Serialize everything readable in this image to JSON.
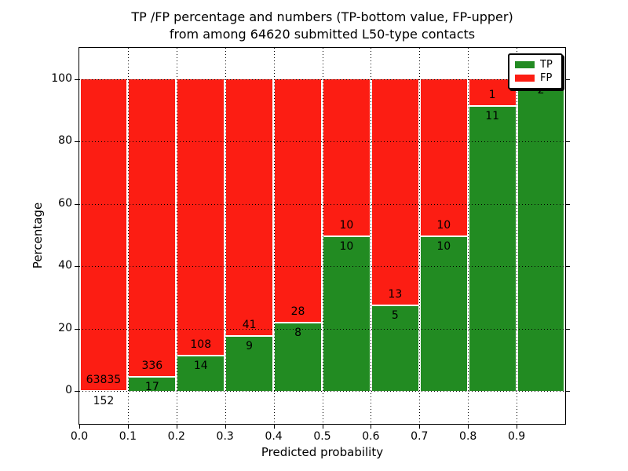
{
  "title": {
    "line1": "TP /FP percentage and numbers (TP-bottom value, FP-upper)",
    "line2": "from among 64620 submitted L50-type contacts"
  },
  "axes": {
    "xlabel": "Predicted probability",
    "ylabel": "Percentage",
    "xtick_labels": [
      "0.0",
      "0.1",
      "0.2",
      "0.3",
      "0.4",
      "0.5",
      "0.6",
      "0.7",
      "0.8",
      "0.9"
    ],
    "xtick_values": [
      0.0,
      0.1,
      0.2,
      0.3,
      0.4,
      0.5,
      0.6,
      0.7,
      0.8,
      0.9
    ],
    "ytick_labels": [
      "0",
      "20",
      "40",
      "60",
      "80",
      "100"
    ],
    "ytick_values": [
      0,
      20,
      40,
      60,
      80,
      100
    ]
  },
  "legend": {
    "items": [
      {
        "label": "TP",
        "color": "#228b22"
      },
      {
        "label": "FP",
        "color": "#fc1d13"
      }
    ]
  },
  "chart_data": {
    "type": "bar",
    "stacked": true,
    "normalized": "percent-of-bin-total",
    "title": "TP /FP percentage and numbers (TP-bottom value, FP-upper) from among 64620 submitted L50-type contacts",
    "xlabel": "Predicted probability",
    "ylabel": "Percentage",
    "bin_edges": [
      0.0,
      0.1,
      0.2,
      0.3,
      0.4,
      0.5,
      0.6,
      0.7,
      0.8,
      0.9,
      1.0
    ],
    "series": [
      {
        "name": "TP",
        "color": "#228b22",
        "counts": [
          152,
          17,
          14,
          9,
          8,
          10,
          5,
          10,
          11,
          2
        ]
      },
      {
        "name": "FP",
        "color": "#fc1d13",
        "counts": [
          63835,
          336,
          108,
          41,
          28,
          10,
          13,
          10,
          1,
          0
        ]
      }
    ],
    "tp_percent_per_bin": [
      0.24,
      4.82,
      11.48,
      18.0,
      22.22,
      50.0,
      27.78,
      50.0,
      91.67,
      100.0
    ],
    "total_contacts": 64620,
    "xlim": [
      0.0,
      1.0
    ],
    "ylim": [
      -10.6,
      110.1
    ],
    "grid": "dotted",
    "grid_on": true,
    "legend_position": "upper-right",
    "bar_label_color": "#000000"
  }
}
